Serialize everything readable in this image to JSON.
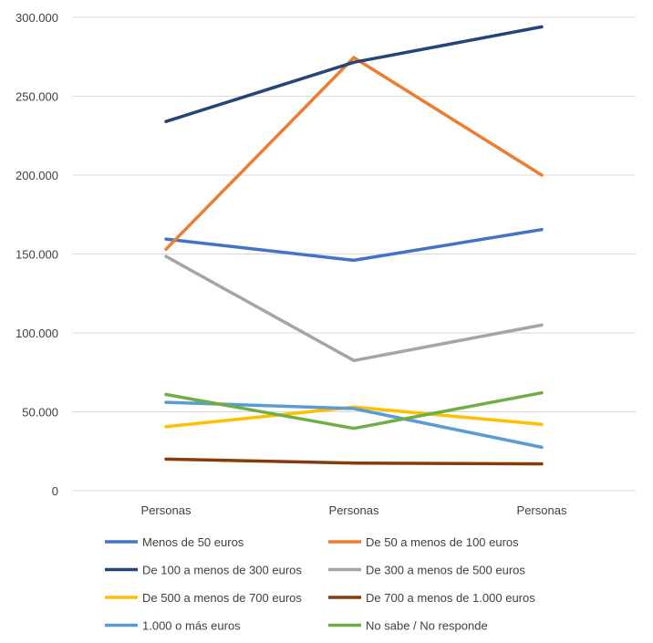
{
  "chart_data": {
    "type": "line",
    "title": "",
    "xlabel": "",
    "ylabel": "",
    "categories": [
      "Personas",
      "Personas",
      "Personas"
    ],
    "ylim": [
      0,
      300000
    ],
    "yticks": [
      0,
      50000,
      100000,
      150000,
      200000,
      250000,
      300000
    ],
    "ytick_labels": [
      "0",
      "50.000",
      "100.000",
      "150.000",
      "200.000",
      "250.000",
      "300.000"
    ],
    "grid": true,
    "legend_position": "bottom",
    "series": [
      {
        "name": "Menos de 50 euros",
        "color": "#4472c4",
        "values": [
          159500,
          146000,
          165500
        ]
      },
      {
        "name": "De 50 a menos de 100 euros",
        "color": "#ed7d31",
        "values": [
          153000,
          274500,
          200000
        ]
      },
      {
        "name": "De 100 a menos de 300 euros",
        "color": "#264478",
        "values": [
          234000,
          271500,
          294000
        ]
      },
      {
        "name": "De 300 a menos de 500 euros",
        "color": "#a5a5a5",
        "values": [
          148500,
          82500,
          105000
        ]
      },
      {
        "name": "De 500 a menos de 700 euros",
        "color": "#ffc000",
        "values": [
          40500,
          53000,
          42000
        ]
      },
      {
        "name": "De 700 a menos de 1.000 euros",
        "color": "#843c0c",
        "values": [
          20000,
          17500,
          17000
        ]
      },
      {
        "name": "1.000 o más euros",
        "color": "#5b9bd5",
        "values": [
          56000,
          52000,
          27500
        ]
      },
      {
        "name": "No sabe / No responde",
        "color": "#70ad47",
        "values": [
          61000,
          39500,
          62000
        ]
      }
    ]
  }
}
